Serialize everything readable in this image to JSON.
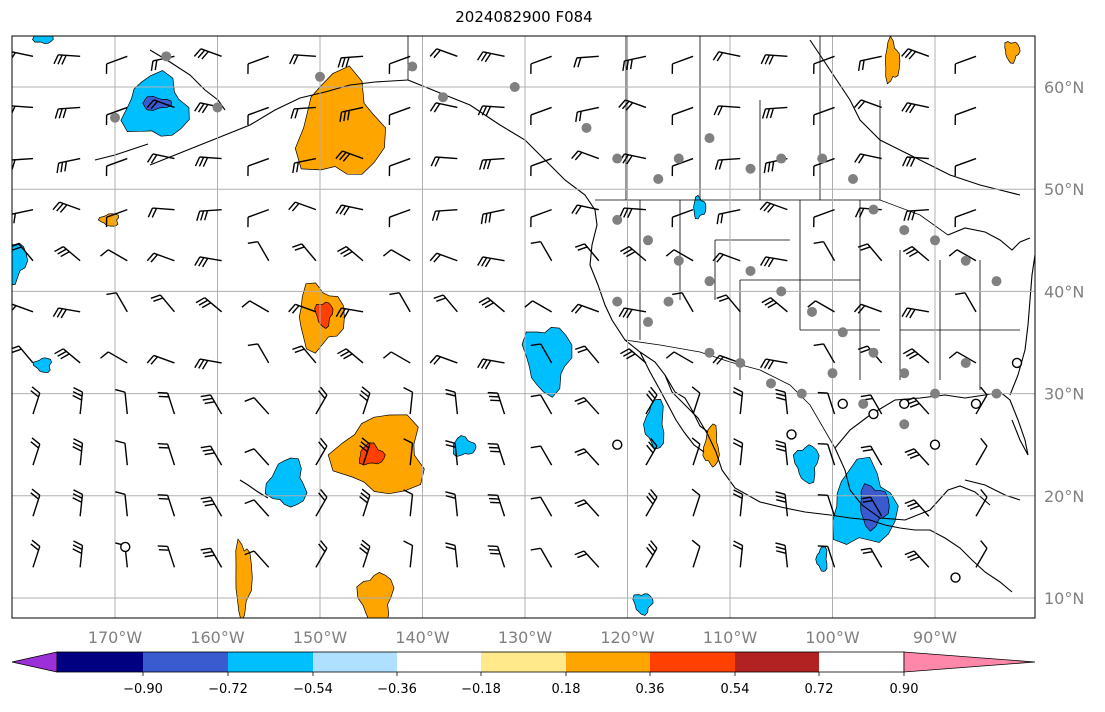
{
  "title": "2024082900 F084",
  "map": {
    "lon_range": [
      -180,
      -80
    ],
    "lat_range": [
      8,
      66
    ],
    "lon_ticks": [
      {
        "value": -170,
        "label": "170°W"
      },
      {
        "value": -160,
        "label": "160°W"
      },
      {
        "value": -150,
        "label": "150°W"
      },
      {
        "value": -140,
        "label": "140°W"
      },
      {
        "value": -130,
        "label": "130°W"
      },
      {
        "value": -120,
        "label": "120°W"
      },
      {
        "value": -110,
        "label": "110°W"
      },
      {
        "value": -100,
        "label": "100°W"
      },
      {
        "value": -90,
        "label": "90°W"
      }
    ],
    "lat_ticks": [
      {
        "value": 10,
        "label": "10°N"
      },
      {
        "value": 20,
        "label": "20°N"
      },
      {
        "value": 30,
        "label": "30°N"
      },
      {
        "value": 40,
        "label": "40°N"
      },
      {
        "value": 50,
        "label": "50°N"
      },
      {
        "value": 60,
        "label": "60°N"
      }
    ],
    "grid": true,
    "colors": {
      "land_outline": "#000000",
      "grid": "#b0b0b0",
      "station_dot": "#808080",
      "tick_label": "#808080"
    }
  },
  "colorbar": {
    "levels": [
      -0.9,
      -0.72,
      -0.54,
      -0.36,
      -0.18,
      0.18,
      0.36,
      0.54,
      0.72,
      0.9
    ],
    "labels": [
      "−0.90",
      "−0.72",
      "−0.54",
      "−0.36",
      "−0.18",
      "0.18",
      "0.36",
      "0.54",
      "0.72",
      "0.90"
    ],
    "colors": [
      "#9b30d9",
      "#000080",
      "#3a5bd0",
      "#00bfff",
      "#b0e0ff",
      "#ffffff",
      "#ffe98a",
      "#ffa500",
      "#ff4000",
      "#b22222",
      "#ff88aa"
    ],
    "extend": "both"
  },
  "features": {
    "positive_blobs": [
      {
        "name": "gulf-of-alaska",
        "lon": -148.0,
        "lat": 56.0,
        "rlon": 4.0,
        "rlat": 5.0,
        "level": 0.36
      },
      {
        "name": "north-pacific-40n",
        "lon": -150.0,
        "lat": 37.5,
        "rlon": 2.2,
        "rlat": 3.0,
        "level": 0.36
      },
      {
        "name": "north-pacific-40n-core",
        "lon": -149.6,
        "lat": 37.8,
        "rlon": 0.8,
        "rlat": 1.2,
        "level": 0.54
      },
      {
        "name": "central-pacific-24n",
        "lon": -144.0,
        "lat": 24.0,
        "rlon": 4.2,
        "rlat": 3.8,
        "level": 0.36
      },
      {
        "name": "central-pacific-24n-core",
        "lon": -145.0,
        "lat": 24.0,
        "rlon": 1.2,
        "rlat": 1.0,
        "level": 0.54
      },
      {
        "name": "subtropical-10n-a",
        "lon": -157.5,
        "lat": 12.0,
        "rlon": 0.8,
        "rlat": 3.5,
        "level": 0.36
      },
      {
        "name": "subtropical-10n-b",
        "lon": -144.5,
        "lat": 10.0,
        "rlon": 1.6,
        "rlat": 2.5,
        "level": 0.36
      },
      {
        "name": "baja-gulf",
        "lon": -111.8,
        "lat": 24.8,
        "rlon": 0.7,
        "rlat": 2.0,
        "level": 0.36
      },
      {
        "name": "canada-65n",
        "lon": -94.2,
        "lat": 62.5,
        "rlon": 0.7,
        "rlat": 2.0,
        "level": 0.36
      },
      {
        "name": "hudson-65n",
        "lon": -82.5,
        "lat": 63.5,
        "rlon": 0.7,
        "rlat": 1.0,
        "level": 0.36
      },
      {
        "name": "pacific-48n",
        "lon": -170.5,
        "lat": 47.0,
        "rlon": 0.9,
        "rlat": 0.6,
        "level": 0.36
      }
    ],
    "negative_blobs": [
      {
        "name": "bering-55n",
        "lon": -166.0,
        "lat": 58.0,
        "rlon": 3.0,
        "rlat": 3.0,
        "level": -0.36
      },
      {
        "name": "bering-55n-core",
        "lon": -166.0,
        "lat": 58.4,
        "rlon": 1.4,
        "rlat": 0.6,
        "level": -0.54
      },
      {
        "name": "off-california-33n",
        "lon": -127.8,
        "lat": 33.5,
        "rlon": 2.2,
        "rlat": 3.2,
        "level": -0.36
      },
      {
        "name": "baja-west-27n",
        "lon": -117.3,
        "lat": 27.0,
        "rlon": 0.9,
        "rlat": 2.4,
        "level": -0.36
      },
      {
        "name": "mexico-20n",
        "lon": -97.0,
        "lat": 19.0,
        "rlon": 3.0,
        "rlat": 4.0,
        "level": -0.36
      },
      {
        "name": "mexico-20n-core",
        "lon": -96.0,
        "lat": 19.0,
        "rlon": 1.4,
        "rlat": 2.0,
        "level": -0.54
      },
      {
        "name": "mexico-west-24n",
        "lon": -102.5,
        "lat": 23.2,
        "rlon": 1.1,
        "rlat": 1.8,
        "level": -0.36
      },
      {
        "name": "pacific-21n",
        "lon": -153.2,
        "lat": 21.2,
        "rlon": 1.8,
        "rlat": 2.3,
        "level": -0.36
      },
      {
        "name": "pacific-25n-small",
        "lon": -136.0,
        "lat": 24.8,
        "rlon": 1.1,
        "rlat": 0.9,
        "level": -0.36
      },
      {
        "name": "pacific-west-44n",
        "lon": -180.0,
        "lat": 43.0,
        "rlon": 1.3,
        "rlat": 2.0,
        "level": -0.36
      },
      {
        "name": "pacific-west-33n",
        "lon": -177.0,
        "lat": 32.8,
        "rlon": 0.8,
        "rlat": 0.7,
        "level": -0.36
      },
      {
        "name": "alaska-north",
        "lon": -177.0,
        "lat": 65.0,
        "rlon": 0.9,
        "rlat": 0.8,
        "level": -0.36
      },
      {
        "name": "idaho-49n",
        "lon": -113.0,
        "lat": 48.2,
        "rlon": 0.6,
        "rlat": 1.0,
        "level": -0.36
      },
      {
        "name": "pacific-10n",
        "lon": -118.5,
        "lat": 9.5,
        "rlon": 0.9,
        "rlat": 1.0,
        "level": -0.36
      },
      {
        "name": "central-america-14n",
        "lon": -101.0,
        "lat": 13.8,
        "rlon": 0.5,
        "rlat": 1.2,
        "level": -0.36
      }
    ]
  }
}
